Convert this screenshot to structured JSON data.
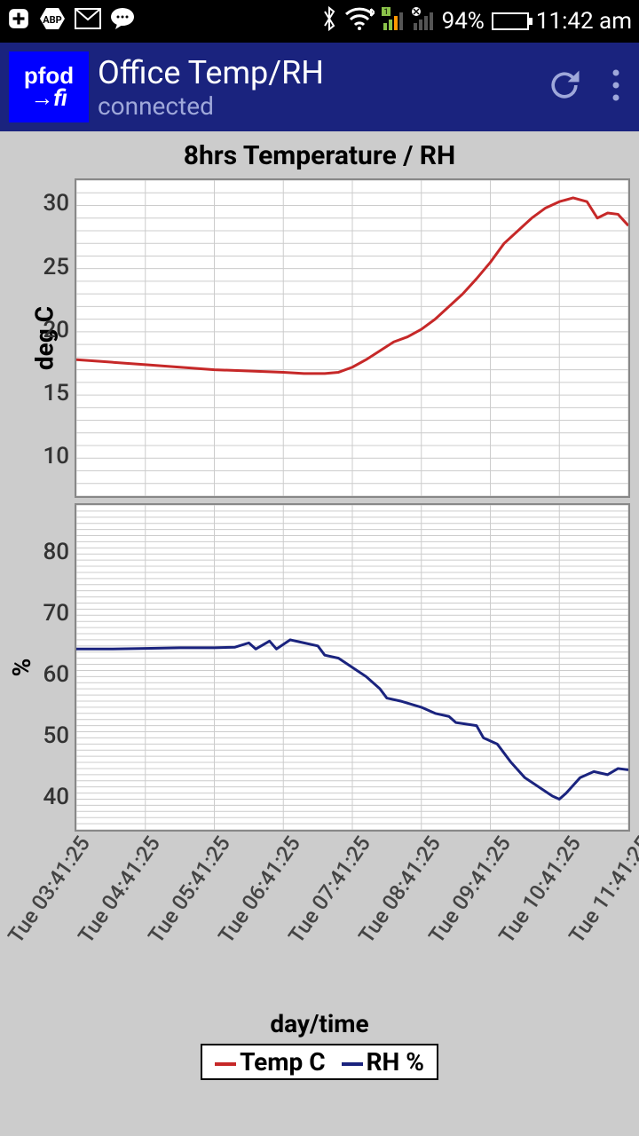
{
  "status": {
    "battery_pct": "94%",
    "time": "11:42 am"
  },
  "app": {
    "logo_line1": "pfod",
    "logo_line2": "→fi",
    "title": "Office Temp/RH",
    "subtitle": "connected"
  },
  "chart": {
    "title": "8hrs Temperature / RH",
    "xlabel": "day/time",
    "background": "#cccccc",
    "plot_bg": "#ffffff",
    "grid_color": "#cccccc",
    "x_ticks": [
      "Tue 03:41:25",
      "Tue 04:41:25",
      "Tue 05:41:25",
      "Tue 06:41:25",
      "Tue 07:41:25",
      "Tue 08:41:25",
      "Tue 09:41:25",
      "Tue 10:41:25",
      "Tue 11:41:25"
    ],
    "legend": [
      {
        "label": "Temp C",
        "color": "#c62828"
      },
      {
        "label": "RH %",
        "color": "#1a237e"
      }
    ],
    "panel1": {
      "ylabel": "deg C",
      "ylim": [
        7,
        32
      ],
      "yticks": [
        10,
        15,
        20,
        25,
        30
      ],
      "color": "#c62828",
      "line_width": 3,
      "data": [
        [
          0,
          17.8
        ],
        [
          0.5,
          17.6
        ],
        [
          1,
          17.4
        ],
        [
          1.5,
          17.2
        ],
        [
          2,
          17.0
        ],
        [
          2.5,
          16.9
        ],
        [
          3,
          16.8
        ],
        [
          3.3,
          16.7
        ],
        [
          3.6,
          16.7
        ],
        [
          3.8,
          16.8
        ],
        [
          4,
          17.2
        ],
        [
          4.2,
          17.8
        ],
        [
          4.4,
          18.5
        ],
        [
          4.6,
          19.2
        ],
        [
          4.8,
          19.6
        ],
        [
          5,
          20.2
        ],
        [
          5.2,
          21.0
        ],
        [
          5.4,
          22.0
        ],
        [
          5.6,
          23.0
        ],
        [
          5.8,
          24.2
        ],
        [
          6,
          25.5
        ],
        [
          6.2,
          27.0
        ],
        [
          6.4,
          28.0
        ],
        [
          6.6,
          29.0
        ],
        [
          6.8,
          29.8
        ],
        [
          7,
          30.3
        ],
        [
          7.2,
          30.6
        ],
        [
          7.4,
          30.3
        ],
        [
          7.55,
          29.0
        ],
        [
          7.7,
          29.4
        ],
        [
          7.85,
          29.3
        ],
        [
          8,
          28.4
        ]
      ]
    },
    "panel2": {
      "ylabel": "%",
      "ylim": [
        35,
        88
      ],
      "yticks": [
        40,
        50,
        60,
        70,
        80
      ],
      "color": "#1a237e",
      "line_width": 3,
      "data": [
        [
          0,
          64.5
        ],
        [
          0.5,
          64.5
        ],
        [
          1,
          64.6
        ],
        [
          1.5,
          64.7
        ],
        [
          2,
          64.7
        ],
        [
          2.3,
          64.8
        ],
        [
          2.5,
          65.5
        ],
        [
          2.6,
          64.5
        ],
        [
          2.8,
          65.8
        ],
        [
          2.9,
          64.5
        ],
        [
          3.1,
          66.0
        ],
        [
          3.3,
          65.5
        ],
        [
          3.5,
          65.0
        ],
        [
          3.6,
          63.5
        ],
        [
          3.8,
          63.0
        ],
        [
          4,
          61.5
        ],
        [
          4.2,
          60.0
        ],
        [
          4.4,
          58.0
        ],
        [
          4.5,
          56.5
        ],
        [
          4.7,
          56.0
        ],
        [
          5,
          55.0
        ],
        [
          5.2,
          54.0
        ],
        [
          5.4,
          53.5
        ],
        [
          5.5,
          52.5
        ],
        [
          5.8,
          52.0
        ],
        [
          5.9,
          50.0
        ],
        [
          6.1,
          49.0
        ],
        [
          6.3,
          46.0
        ],
        [
          6.5,
          43.5
        ],
        [
          6.7,
          42.0
        ],
        [
          6.9,
          40.5
        ],
        [
          7.0,
          40.0
        ],
        [
          7.1,
          41.0
        ],
        [
          7.3,
          43.5
        ],
        [
          7.5,
          44.5
        ],
        [
          7.7,
          44.0
        ],
        [
          7.85,
          45.0
        ],
        [
          8,
          44.8
        ]
      ]
    }
  }
}
